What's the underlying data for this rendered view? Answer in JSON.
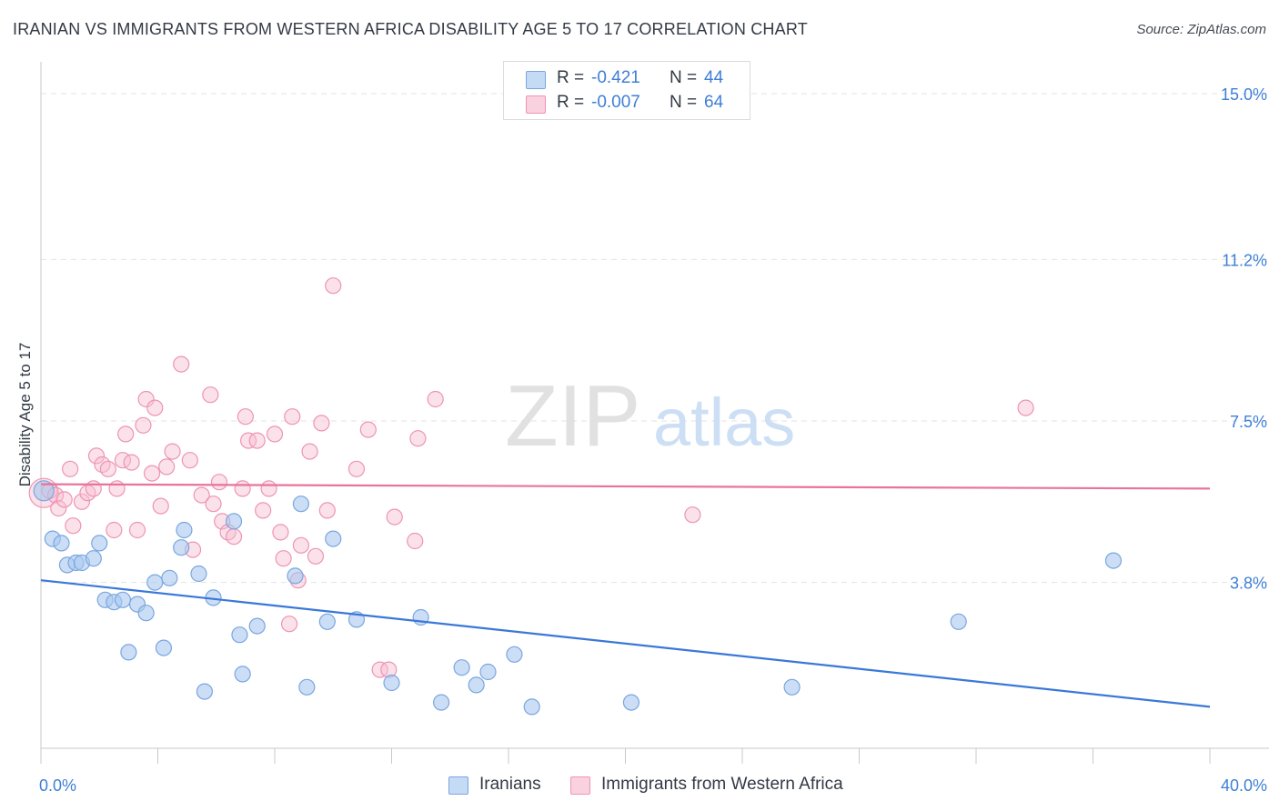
{
  "title": "IRANIAN VS IMMIGRANTS FROM WESTERN AFRICA DISABILITY AGE 5 TO 17 CORRELATION CHART",
  "source": "Source: ZipAtlas.com",
  "watermark": {
    "zip": "ZIP",
    "atlas": "atlas"
  },
  "legend_top": {
    "rows": [
      {
        "r_label": "R =",
        "r_value": "-0.421",
        "n_label": "N =",
        "n_value": "44"
      },
      {
        "r_label": "R =",
        "r_value": "-0.007",
        "n_label": "N =",
        "n_value": "64"
      }
    ]
  },
  "legend_bottom": {
    "items": [
      {
        "label": "Iranians"
      },
      {
        "label": "Immigrants from Western Africa"
      }
    ]
  },
  "colors": {
    "blue_fill": "#a9c8ef",
    "blue_stroke": "#7aa6e0",
    "blue_line": "#3a78d8",
    "pink_fill": "#f6bfd0",
    "pink_stroke": "#ee94b2",
    "pink_line": "#e8749a",
    "tick_label": "#3e7fd6",
    "grid": "#e3e3e3"
  },
  "chart_data": {
    "type": "scatter",
    "title": "IRANIAN VS IMMIGRANTS FROM WESTERN AFRICA DISABILITY AGE 5 TO 17 CORRELATION CHART",
    "xlabel": "",
    "ylabel": "Disability Age 5 to 17",
    "xlim": [
      0,
      40
    ],
    "ylim": [
      0,
      15.5
    ],
    "x_tick_labels": [
      "0.0%",
      "40.0%"
    ],
    "y_ticks": [
      3.8,
      7.5,
      11.2,
      15.0
    ],
    "y_tick_labels": [
      "3.8%",
      "7.5%",
      "11.2%",
      "15.0%"
    ],
    "grid": "horizontal dashed",
    "legend_position": "top-center",
    "series": [
      {
        "name": "Iranians",
        "color": "#a9c8ef",
        "trend": {
          "x": [
            0,
            40
          ],
          "y": [
            3.85,
            0.95
          ]
        },
        "points": [
          [
            0.1,
            5.9
          ],
          [
            0.4,
            4.8
          ],
          [
            0.7,
            4.7
          ],
          [
            0.9,
            4.2
          ],
          [
            1.2,
            4.25
          ],
          [
            1.4,
            4.25
          ],
          [
            1.8,
            4.35
          ],
          [
            2.0,
            4.7
          ],
          [
            2.2,
            3.4
          ],
          [
            2.5,
            3.35
          ],
          [
            2.8,
            3.4
          ],
          [
            3.0,
            2.2
          ],
          [
            3.3,
            3.3
          ],
          [
            3.6,
            3.1
          ],
          [
            3.9,
            3.8
          ],
          [
            4.2,
            2.3
          ],
          [
            4.4,
            3.9
          ],
          [
            4.8,
            4.6
          ],
          [
            4.9,
            5.0
          ],
          [
            5.4,
            4.0
          ],
          [
            5.6,
            1.3
          ],
          [
            5.9,
            3.45
          ],
          [
            6.6,
            5.2
          ],
          [
            6.8,
            2.6
          ],
          [
            6.9,
            1.7
          ],
          [
            7.4,
            2.8
          ],
          [
            8.7,
            3.95
          ],
          [
            8.9,
            5.6
          ],
          [
            9.1,
            1.4
          ],
          [
            9.8,
            2.9
          ],
          [
            10.0,
            4.8
          ],
          [
            10.8,
            2.95
          ],
          [
            12.0,
            1.5
          ],
          [
            13.0,
            3.0
          ],
          [
            13.7,
            1.05
          ],
          [
            14.4,
            1.85
          ],
          [
            14.9,
            1.45
          ],
          [
            15.3,
            1.75
          ],
          [
            16.2,
            2.15
          ],
          [
            16.8,
            0.95
          ],
          [
            20.2,
            1.05
          ],
          [
            25.7,
            1.4
          ],
          [
            31.4,
            2.9
          ],
          [
            36.7,
            4.3
          ]
        ]
      },
      {
        "name": "Immigrants from Western Africa",
        "color": "#f6bfd0",
        "trend": {
          "x": [
            0,
            40
          ],
          "y": [
            6.05,
            5.95
          ]
        },
        "points": [
          [
            0.1,
            5.85
          ],
          [
            0.3,
            5.9
          ],
          [
            0.5,
            5.8
          ],
          [
            0.6,
            5.5
          ],
          [
            0.8,
            5.7
          ],
          [
            1.0,
            6.4
          ],
          [
            1.1,
            5.1
          ],
          [
            1.4,
            5.65
          ],
          [
            1.6,
            5.85
          ],
          [
            1.8,
            5.95
          ],
          [
            1.9,
            6.7
          ],
          [
            2.1,
            6.5
          ],
          [
            2.3,
            6.4
          ],
          [
            2.5,
            5.0
          ],
          [
            2.6,
            5.95
          ],
          [
            2.8,
            6.6
          ],
          [
            2.9,
            7.2
          ],
          [
            3.1,
            6.55
          ],
          [
            3.3,
            5.0
          ],
          [
            3.5,
            7.4
          ],
          [
            3.6,
            8.0
          ],
          [
            3.8,
            6.3
          ],
          [
            3.9,
            7.8
          ],
          [
            4.1,
            5.55
          ],
          [
            4.3,
            6.45
          ],
          [
            4.5,
            6.8
          ],
          [
            4.8,
            8.8
          ],
          [
            5.1,
            6.6
          ],
          [
            5.2,
            4.55
          ],
          [
            5.5,
            5.8
          ],
          [
            5.8,
            8.1
          ],
          [
            5.9,
            5.6
          ],
          [
            6.1,
            6.1
          ],
          [
            6.2,
            5.2
          ],
          [
            6.4,
            4.95
          ],
          [
            6.6,
            4.85
          ],
          [
            6.9,
            5.95
          ],
          [
            7.0,
            7.6
          ],
          [
            7.1,
            7.05
          ],
          [
            7.4,
            7.05
          ],
          [
            7.6,
            5.45
          ],
          [
            7.8,
            5.95
          ],
          [
            8.0,
            7.2
          ],
          [
            8.2,
            4.95
          ],
          [
            8.3,
            4.35
          ],
          [
            8.5,
            2.85
          ],
          [
            8.6,
            7.6
          ],
          [
            8.8,
            3.85
          ],
          [
            8.9,
            4.65
          ],
          [
            9.2,
            6.8
          ],
          [
            9.4,
            4.4
          ],
          [
            9.6,
            7.45
          ],
          [
            9.8,
            5.45
          ],
          [
            10.0,
            10.6
          ],
          [
            10.8,
            6.4
          ],
          [
            11.2,
            7.3
          ],
          [
            11.6,
            1.8
          ],
          [
            11.9,
            1.8
          ],
          [
            12.1,
            5.3
          ],
          [
            12.8,
            4.75
          ],
          [
            12.9,
            7.1
          ],
          [
            13.5,
            8.0
          ],
          [
            22.3,
            5.35
          ],
          [
            33.7,
            7.8
          ]
        ]
      }
    ]
  }
}
